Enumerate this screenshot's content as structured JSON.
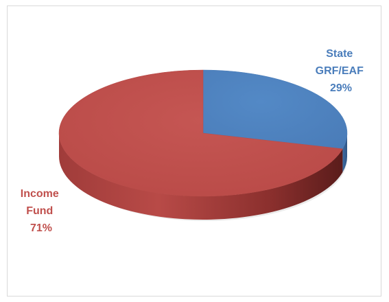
{
  "chart_data": {
    "type": "pie",
    "title": "",
    "legend": "none",
    "three_d": true,
    "slices": [
      {
        "name": "State GRF/EAF",
        "label_lines": [
          "State",
          "GRF/EAF",
          "29%"
        ],
        "value": 29,
        "color": "#4f81bd"
      },
      {
        "name": "Income Fund",
        "label_lines": [
          "Income",
          "Fund",
          "71%"
        ],
        "value": 71,
        "color": "#c0504d"
      }
    ]
  }
}
